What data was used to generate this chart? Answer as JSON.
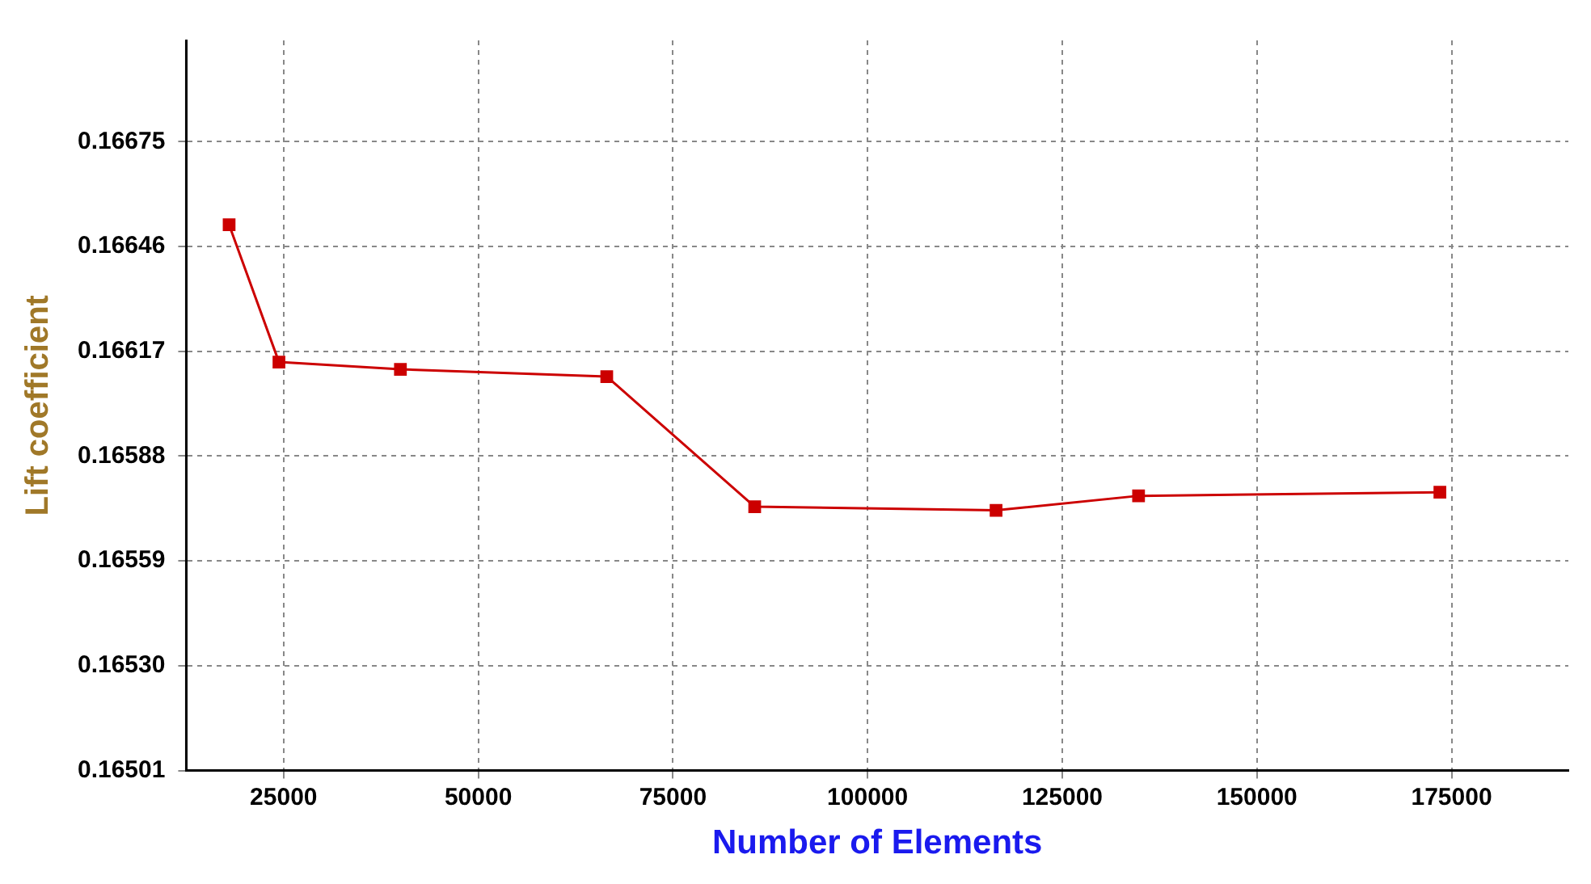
{
  "chart_data": {
    "type": "line",
    "xlabel": "Number of Elements",
    "ylabel": "Lift coefficient",
    "x": [
      18000,
      24400,
      40000,
      66500,
      85500,
      116500,
      134800,
      173500
    ],
    "series": [
      {
        "color": "#cc0000",
        "values": [
          0.16652,
          0.16614,
          0.16612,
          0.1661,
          0.16574,
          0.16573,
          0.16577,
          0.16578
        ]
      }
    ],
    "xlim": [
      12500,
      190000
    ],
    "xticks": [
      25000,
      50000,
      75000,
      100000,
      125000,
      150000,
      175000
    ],
    "ylim": [
      0.16501,
      0.16703
    ],
    "yticks": [
      {
        "value": 0.16501,
        "label": "0.16501"
      },
      {
        "value": 0.1653,
        "label": "0.16530"
      },
      0.16559,
      0.16588,
      0.16617,
      0.16646,
      0.16675
    ],
    "grid": true,
    "legend": false,
    "marker": "square",
    "line_style": "solid"
  }
}
